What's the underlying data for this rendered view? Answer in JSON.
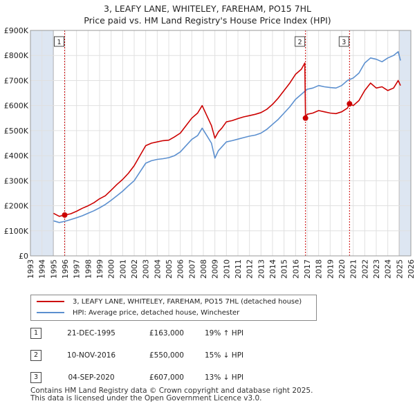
{
  "title_line1": "3, LEAFY LANE, WHITELEY, FAREHAM, PO15 7HL",
  "title_line2": "Price paid vs. HM Land Registry's House Price Index (HPI)",
  "colors": {
    "property": "#cc0000",
    "hpi": "#5b8fcf",
    "marker": "#cc0000",
    "shade": "#dde6f2",
    "grid": "#e0e0e0"
  },
  "chart_data": {
    "type": "line",
    "title": "Price paid vs. HM Land Registry's House Price Index (HPI)",
    "xlabel": "",
    "ylabel": "",
    "xlim": [
      1993,
      2026
    ],
    "ylim": [
      0,
      900000
    ],
    "y_ticks": [
      0,
      100000,
      200000,
      300000,
      400000,
      500000,
      600000,
      700000,
      800000,
      900000
    ],
    "y_tick_labels": [
      "£0",
      "£100K",
      "£200K",
      "£300K",
      "£400K",
      "£500K",
      "£600K",
      "£700K",
      "£800K",
      "£900K"
    ],
    "x_ticks": [
      1993,
      1994,
      1995,
      1996,
      1997,
      1998,
      1999,
      2000,
      2001,
      2002,
      2003,
      2004,
      2005,
      2006,
      2007,
      2008,
      2009,
      2010,
      2011,
      2012,
      2013,
      2014,
      2015,
      2016,
      2017,
      2018,
      2019,
      2020,
      2021,
      2022,
      2023,
      2024,
      2025,
      2026
    ],
    "grid": true,
    "shaded_ranges": [
      [
        1993,
        1995.0
      ],
      [
        2025.0,
        2026
      ]
    ],
    "series": [
      {
        "name": "3, LEAFY LANE, WHITELEY, FAREHAM, PO15 7HL (detached house)",
        "color": "#cc0000",
        "x": [
          1995.0,
          1995.5,
          1995.97,
          1996.5,
          1997.0,
          1997.5,
          1998.0,
          1998.5,
          1999.0,
          1999.5,
          2000.0,
          2000.5,
          2001.0,
          2001.5,
          2002.0,
          2002.5,
          2003.0,
          2003.5,
          2004.0,
          2004.5,
          2005.0,
          2005.5,
          2006.0,
          2006.5,
          2007.0,
          2007.5,
          2007.9,
          2008.3,
          2008.7,
          2009.0,
          2009.3,
          2009.6,
          2010.0,
          2010.5,
          2011.0,
          2011.5,
          2012.0,
          2012.5,
          2013.0,
          2013.5,
          2014.0,
          2014.5,
          2015.0,
          2015.5,
          2016.0,
          2016.5,
          2016.8,
          2016.86,
          2017.0,
          2017.5,
          2018.0,
          2018.5,
          2019.0,
          2019.5,
          2020.0,
          2020.5,
          2020.68,
          2021.0,
          2021.5,
          2022.0,
          2022.5,
          2023.0,
          2023.5,
          2024.0,
          2024.5,
          2024.9,
          2025.1
        ],
        "values": [
          170000,
          158000,
          163000,
          168000,
          178000,
          190000,
          200000,
          212000,
          228000,
          240000,
          262000,
          285000,
          305000,
          330000,
          360000,
          400000,
          440000,
          450000,
          455000,
          460000,
          462000,
          475000,
          490000,
          520000,
          550000,
          570000,
          600000,
          560000,
          520000,
          470000,
          495000,
          510000,
          535000,
          540000,
          548000,
          555000,
          560000,
          565000,
          572000,
          585000,
          605000,
          630000,
          660000,
          690000,
          725000,
          745000,
          770000,
          550000,
          565000,
          570000,
          580000,
          575000,
          570000,
          568000,
          575000,
          590000,
          607000,
          600000,
          620000,
          660000,
          690000,
          670000,
          675000,
          660000,
          670000,
          700000,
          680000
        ]
      },
      {
        "name": "HPI: Average price, detached house, Winchester",
        "color": "#5b8fcf",
        "x": [
          1995.0,
          1995.5,
          1996.0,
          1996.5,
          1997.0,
          1997.5,
          1998.0,
          1998.5,
          1999.0,
          1999.5,
          2000.0,
          2000.5,
          2001.0,
          2001.5,
          2002.0,
          2002.5,
          2003.0,
          2003.5,
          2004.0,
          2004.5,
          2005.0,
          2005.5,
          2006.0,
          2006.5,
          2007.0,
          2007.5,
          2007.9,
          2008.3,
          2008.7,
          2009.0,
          2009.3,
          2009.6,
          2010.0,
          2010.5,
          2011.0,
          2011.5,
          2012.0,
          2012.5,
          2013.0,
          2013.5,
          2014.0,
          2014.5,
          2015.0,
          2015.5,
          2016.0,
          2016.5,
          2017.0,
          2017.5,
          2018.0,
          2018.5,
          2019.0,
          2019.5,
          2020.0,
          2020.5,
          2021.0,
          2021.5,
          2022.0,
          2022.5,
          2023.0,
          2023.5,
          2024.0,
          2024.5,
          2024.9,
          2025.1
        ],
        "values": [
          140000,
          133000,
          138000,
          145000,
          152000,
          160000,
          170000,
          180000,
          192000,
          205000,
          222000,
          240000,
          258000,
          280000,
          300000,
          335000,
          370000,
          380000,
          385000,
          388000,
          392000,
          400000,
          415000,
          440000,
          465000,
          480000,
          510000,
          480000,
          450000,
          390000,
          420000,
          435000,
          455000,
          460000,
          466000,
          472000,
          478000,
          482000,
          490000,
          505000,
          525000,
          545000,
          570000,
          595000,
          625000,
          645000,
          665000,
          670000,
          680000,
          675000,
          672000,
          670000,
          680000,
          700000,
          710000,
          730000,
          770000,
          790000,
          785000,
          775000,
          790000,
          800000,
          815000,
          780000
        ]
      }
    ],
    "annotations": [
      {
        "label": "1",
        "x": 1995.97,
        "y": 163000
      },
      {
        "label": "2",
        "x": 2016.86,
        "y": 550000
      },
      {
        "label": "3",
        "x": 2020.68,
        "y": 607000
      }
    ]
  },
  "legend": {
    "property_label": "3, LEAFY LANE, WHITELEY, FAREHAM, PO15 7HL (detached house)",
    "hpi_label": "HPI: Average price, detached house, Winchester"
  },
  "sales": [
    {
      "marker": "1",
      "date": "21-DEC-1995",
      "price": "£163,000",
      "hpi": "19% ↑ HPI"
    },
    {
      "marker": "2",
      "date": "10-NOV-2016",
      "price": "£550,000",
      "hpi": "15% ↓ HPI"
    },
    {
      "marker": "3",
      "date": "04-SEP-2020",
      "price": "£607,000",
      "hpi": "13% ↓ HPI"
    }
  ],
  "footer": {
    "line1": "Contains HM Land Registry data © Crown copyright and database right 2025.",
    "line2": "This data is licensed under the Open Government Licence v3.0."
  }
}
